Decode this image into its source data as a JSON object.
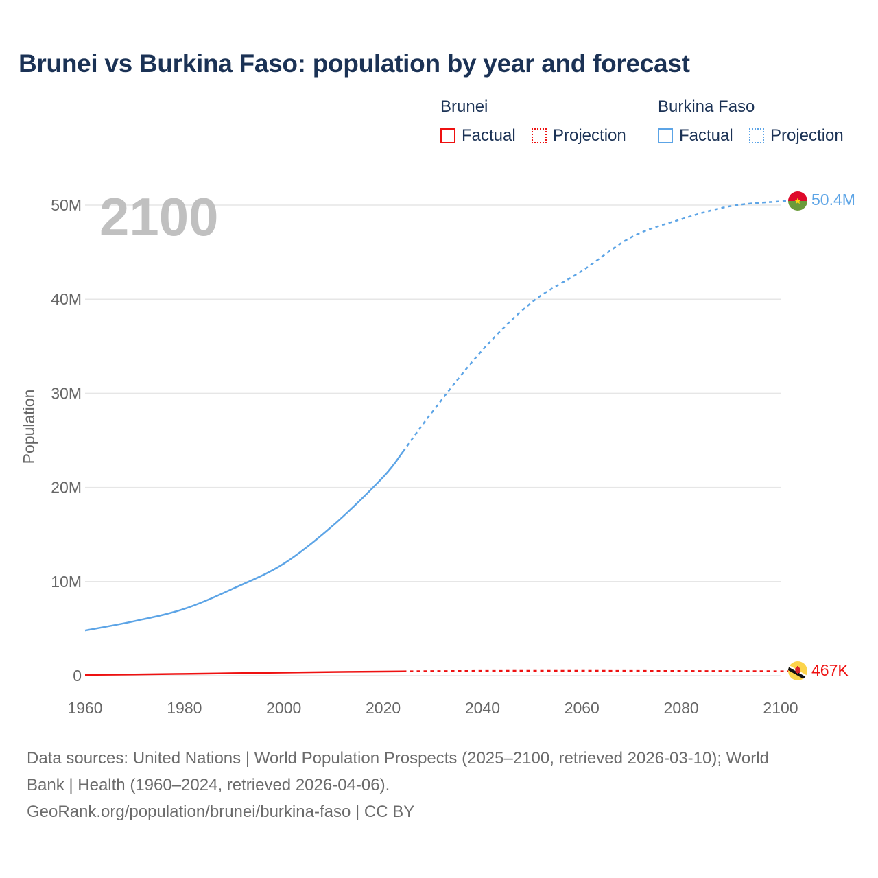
{
  "title": "Brunei vs Burkina Faso: population by year and forecast",
  "legend": {
    "groups": [
      {
        "name": "Brunei",
        "color": "#ee1111",
        "items": [
          "Factual",
          "Projection"
        ]
      },
      {
        "name": "Burkina Faso",
        "color": "#5ca4e6",
        "items": [
          "Factual",
          "Projection"
        ]
      }
    ]
  },
  "year_watermark": "2100",
  "end_labels": {
    "burkina_faso": "50.4M",
    "brunei": "467K"
  },
  "footer": {
    "line1": "Data sources: United Nations | World Population Prospects (2025–2100, retrieved 2026-03-10); World",
    "line2": "Bank | Health (1960–2024, retrieved 2026-04-06).",
    "line3": "GeoRank.org/population/brunei/burkina-faso | CC BY"
  },
  "chart_data": {
    "type": "line",
    "title": "Brunei vs Burkina Faso: population by year and forecast",
    "xlabel": "",
    "ylabel": "Population",
    "xlim": [
      1960,
      2100
    ],
    "ylim": [
      0,
      50000000
    ],
    "x_ticks": [
      "1960",
      "1980",
      "2000",
      "2020",
      "2040",
      "2060",
      "2080",
      "2100"
    ],
    "y_ticks": [
      "0",
      "10M",
      "20M",
      "30M",
      "40M",
      "50M"
    ],
    "grid": true,
    "legend_position": "top-right",
    "factual_range": [
      1960,
      2024
    ],
    "projection_range": [
      2024,
      2100
    ],
    "x": [
      1960,
      1970,
      1980,
      1990,
      2000,
      2010,
      2020,
      2024,
      2030,
      2040,
      2050,
      2060,
      2070,
      2080,
      2090,
      2100
    ],
    "series": [
      {
        "name": "Burkina Faso",
        "color": "#5ca4e6",
        "values": [
          4800000,
          5800000,
          7100000,
          9300000,
          11900000,
          16000000,
          21100000,
          23800000,
          28100000,
          34600000,
          39700000,
          43000000,
          46600000,
          48500000,
          49900000,
          50400000
        ],
        "end_label": "50.4M"
      },
      {
        "name": "Brunei",
        "color": "#ee1111",
        "values": [
          82000,
          130000,
          190000,
          260000,
          330000,
          390000,
          440000,
          460000,
          480000,
          500000,
          510000,
          510000,
          500000,
          490000,
          480000,
          467000
        ],
        "end_label": "467K"
      }
    ]
  }
}
